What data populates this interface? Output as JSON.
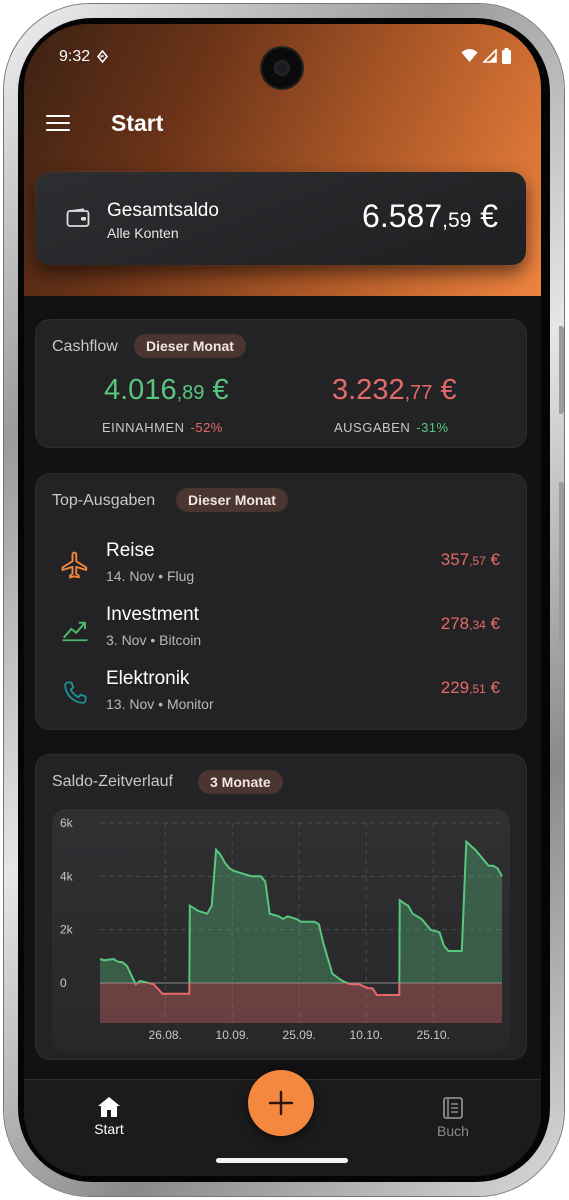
{
  "status": {
    "time": "9:32"
  },
  "appbar": {
    "title": "Start"
  },
  "balance": {
    "label": "Gesamtsaldo",
    "sub": "Alle Konten",
    "amount_int": "6.587",
    "amount_dec": ",59",
    "currency": "€"
  },
  "cashflow": {
    "title": "Cashflow",
    "chip": "Dieser Monat",
    "income": {
      "int": "4.016",
      "dec": ",89",
      "currency": "€",
      "label": "EINNAHMEN",
      "pct": "-52%",
      "color": "#58c77e"
    },
    "expenses": {
      "int": "3.232",
      "dec": ",77",
      "currency": "€",
      "label": "AUSGABEN",
      "pct": "-31%",
      "color": "#e46a6a"
    }
  },
  "top_expenses": {
    "title": "Top-Ausgaben",
    "chip": "Dieser Monat",
    "items": [
      {
        "name": "Reise",
        "date": "14. Nov",
        "detail": "Flug",
        "int": "357",
        "dec": ",57",
        "currency": "€",
        "icon": "plane-icon",
        "icon_color": "#f3883e"
      },
      {
        "name": "Investment",
        "date": "3. Nov",
        "detail": "Bitcoin",
        "int": "278",
        "dec": ",34",
        "currency": "€",
        "icon": "trending-up-icon",
        "icon_color": "#4cb86a"
      },
      {
        "name": "Elektronik",
        "date": "13. Nov",
        "detail": "Monitor",
        "int": "229",
        "dec": ",51",
        "currency": "€",
        "icon": "phone-icon",
        "icon_color": "#1f8e8e"
      }
    ]
  },
  "balance_chart": {
    "title": "Saldo-Zeitverlauf",
    "chip": "3 Monate"
  },
  "chart_data": {
    "type": "area",
    "title": "",
    "xlabel": "",
    "ylabel": "",
    "ylim": [
      -800,
      6000
    ],
    "yticks": [
      "6k",
      "4k",
      "2k",
      "0"
    ],
    "ytick_values": [
      6000,
      4000,
      2000,
      0
    ],
    "xticks": [
      "26.08.",
      "10.09.",
      "25.09.",
      "10.10.",
      "25.10."
    ],
    "grid": true,
    "series": [
      {
        "x": [
          0,
          1,
          3,
          4,
          5,
          6,
          8,
          9,
          12,
          14,
          16,
          18,
          20,
          20.1,
          22,
          24,
          25,
          26,
          27,
          28,
          29,
          30,
          32,
          34,
          36,
          37,
          38,
          40,
          41,
          42,
          44,
          45,
          48,
          49,
          50,
          52,
          54,
          56,
          58,
          60,
          61,
          62,
          64,
          65,
          66,
          67,
          67.1,
          68,
          69,
          70,
          72,
          74,
          76,
          77,
          78,
          80,
          81,
          82,
          84,
          86,
          87,
          88,
          89,
          90
        ],
        "y": [
          900,
          850,
          900,
          800,
          780,
          650,
          -50,
          80,
          -50,
          -400,
          -400,
          -400,
          -400,
          2900,
          2700,
          2600,
          2900,
          5000,
          4800,
          4500,
          4300,
          4200,
          4100,
          4000,
          4000,
          3800,
          2600,
          2500,
          2400,
          2500,
          2400,
          2300,
          2300,
          2200,
          1500,
          350,
          100,
          -50,
          -50,
          -200,
          -200,
          -450,
          -450,
          -450,
          -450,
          -450,
          3100,
          3000,
          2900,
          2600,
          2400,
          2000,
          1900,
          1400,
          1200,
          1200,
          1200,
          5300,
          5000,
          4600,
          4400,
          4400,
          4300,
          4000
        ],
        "color": "#58c77e",
        "negative_color": "#e46a6a"
      }
    ]
  },
  "nav": {
    "home_label": "Start",
    "book_label": "Buch"
  }
}
